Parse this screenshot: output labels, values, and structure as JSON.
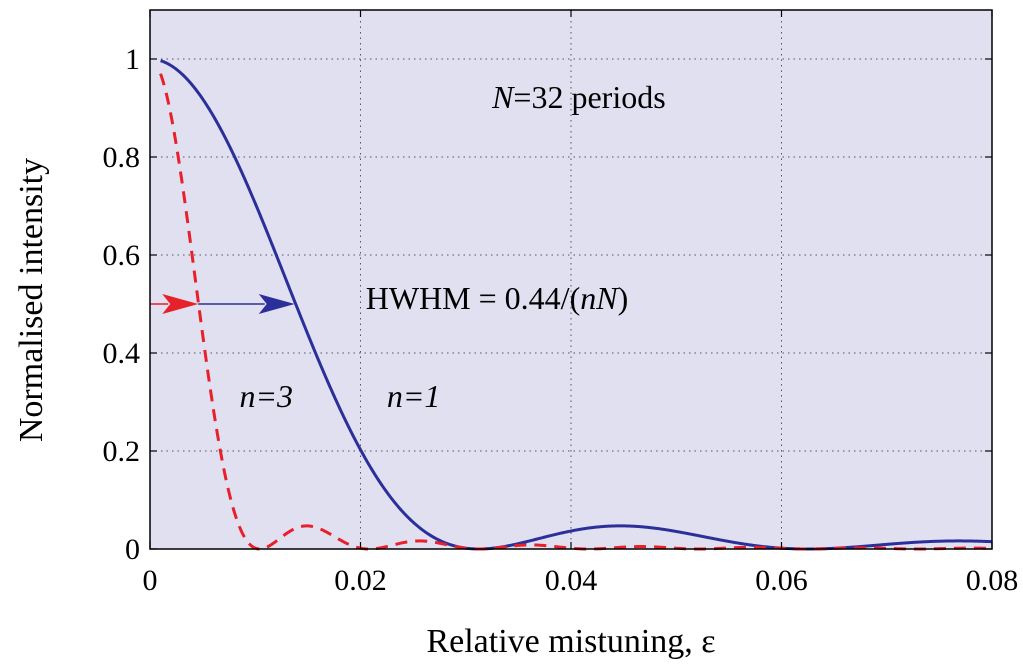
{
  "chart_data": {
    "type": "line",
    "title": "",
    "xlabel": "Relative mistuning, ε",
    "ylabel": "Normalised intensity",
    "xlim": [
      0,
      0.08
    ],
    "ylim": [
      0,
      1.1
    ],
    "x_ticks": [
      "0",
      "0.02",
      "0.04",
      "0.06",
      "0.08"
    ],
    "y_ticks": [
      "0",
      "0.2",
      "0.4",
      "0.6",
      "0.8",
      "1"
    ],
    "grid": "dotted",
    "background_color": "#e0e0f0",
    "N": 32,
    "series": [
      {
        "name": "n=1",
        "n": 1,
        "style": "solid",
        "color": "#2b2f9a"
      },
      {
        "name": "n=3",
        "n": 3,
        "style": "dashed",
        "color": "#e8202a"
      }
    ],
    "hwhm_level": 0.5,
    "annotations": {
      "periods": {
        "N_symbol": "N",
        "rest": "=32 periods",
        "x": 0.0325,
        "y": 0.9
      },
      "hwhm": {
        "prefix": "HWHM = 0.44/(",
        "italic": "nN",
        "suffix": ")",
        "x": 0.0205,
        "y": 0.49
      },
      "label_n3": {
        "text": "n=3",
        "x": 0.0085,
        "y": 0.29,
        "color": "#e8202a"
      },
      "label_n1": {
        "text": "n=1",
        "x": 0.0225,
        "y": 0.29,
        "color": "#2b2f9a"
      }
    }
  }
}
